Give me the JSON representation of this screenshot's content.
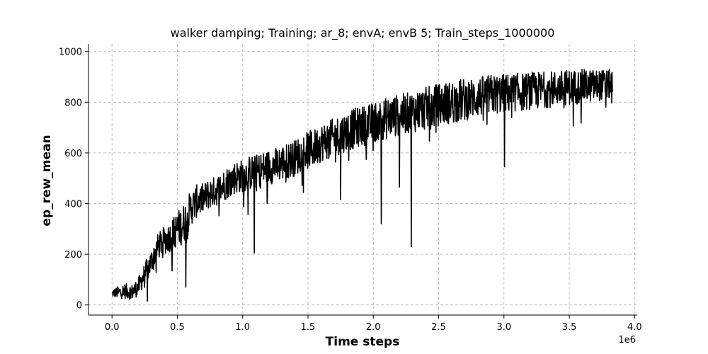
{
  "chart_data": {
    "type": "line",
    "title": "walker damping; Training; ar_8; envA; envB 5; Train_steps_1000000",
    "xlabel": "Time steps",
    "ylabel": "ep_rew_mean",
    "x_offset_label": "1e6",
    "xlim": [
      -0.18,
      4.02
    ],
    "ylim": [
      -40,
      1030
    ],
    "xticks": [
      0.0,
      0.5,
      1.0,
      1.5,
      2.0,
      2.5,
      3.0,
      3.5,
      4.0
    ],
    "xtick_labels": [
      "0.0",
      "0.5",
      "1.0",
      "1.5",
      "2.0",
      "2.5",
      "3.0",
      "3.5",
      "4.0"
    ],
    "yticks": [
      0,
      200,
      400,
      600,
      800,
      1000
    ],
    "ytick_labels": [
      "0",
      "200",
      "400",
      "600",
      "800",
      "1000"
    ],
    "grid": true,
    "color": "#000000",
    "series": [
      {
        "x": [
          0.0,
          0.05,
          0.1,
          0.15,
          0.2,
          0.25,
          0.3,
          0.35,
          0.4,
          0.45,
          0.5,
          0.55,
          0.6,
          0.65,
          0.7,
          0.75,
          0.8,
          0.85,
          0.9,
          0.95,
          1.0,
          1.05,
          1.1,
          1.15,
          1.2,
          1.25,
          1.3,
          1.35,
          1.4,
          1.45,
          1.5,
          1.55,
          1.6,
          1.65,
          1.7,
          1.75,
          1.8,
          1.85,
          1.9,
          1.95,
          2.0,
          2.05,
          2.1,
          2.15,
          2.2,
          2.25,
          2.3,
          2.35,
          2.4,
          2.45,
          2.5,
          2.55,
          2.6,
          2.65,
          2.7,
          2.75,
          2.8,
          2.85,
          2.9,
          2.95,
          3.0,
          3.05,
          3.1,
          3.15,
          3.2,
          3.25,
          3.3,
          3.35,
          3.4,
          3.45,
          3.5,
          3.55,
          3.6,
          3.65,
          3.7,
          3.75,
          3.8,
          3.83
        ],
        "values": [
          45,
          50,
          55,
          50,
          70,
          120,
          170,
          230,
          255,
          270,
          300,
          320,
          380,
          410,
          420,
          440,
          450,
          470,
          490,
          505,
          510,
          520,
          525,
          535,
          545,
          550,
          560,
          570,
          580,
          600,
          610,
          620,
          640,
          650,
          660,
          675,
          685,
          695,
          705,
          710,
          720,
          730,
          735,
          745,
          750,
          755,
          760,
          770,
          775,
          780,
          790,
          795,
          800,
          805,
          810,
          815,
          820,
          825,
          830,
          830,
          835,
          835,
          840,
          840,
          845,
          845,
          850,
          850,
          855,
          855,
          860,
          860,
          862,
          865,
          865,
          868,
          870,
          870
        ],
        "noise": [
          15,
          25,
          30,
          30,
          35,
          45,
          50,
          50,
          55,
          60,
          70,
          80,
          70,
          65,
          60,
          60,
          60,
          62,
          65,
          65,
          65,
          68,
          68,
          70,
          70,
          70,
          72,
          72,
          72,
          75,
          75,
          75,
          75,
          75,
          78,
          78,
          78,
          80,
          80,
          80,
          80,
          82,
          82,
          82,
          82,
          82,
          82,
          85,
          85,
          85,
          85,
          85,
          85,
          85,
          85,
          80,
          80,
          80,
          80,
          78,
          78,
          78,
          75,
          75,
          75,
          75,
          72,
          72,
          70,
          70,
          70,
          68,
          68,
          65,
          65,
          60,
          60,
          55
        ],
        "dips": [
          [
            0.27,
            15
          ],
          [
            0.565,
            70
          ],
          [
            1.09,
            205
          ],
          [
            1.75,
            415
          ],
          [
            2.06,
            320
          ],
          [
            2.2,
            465
          ],
          [
            2.29,
            230
          ],
          [
            3.005,
            545
          ]
        ]
      }
    ]
  }
}
